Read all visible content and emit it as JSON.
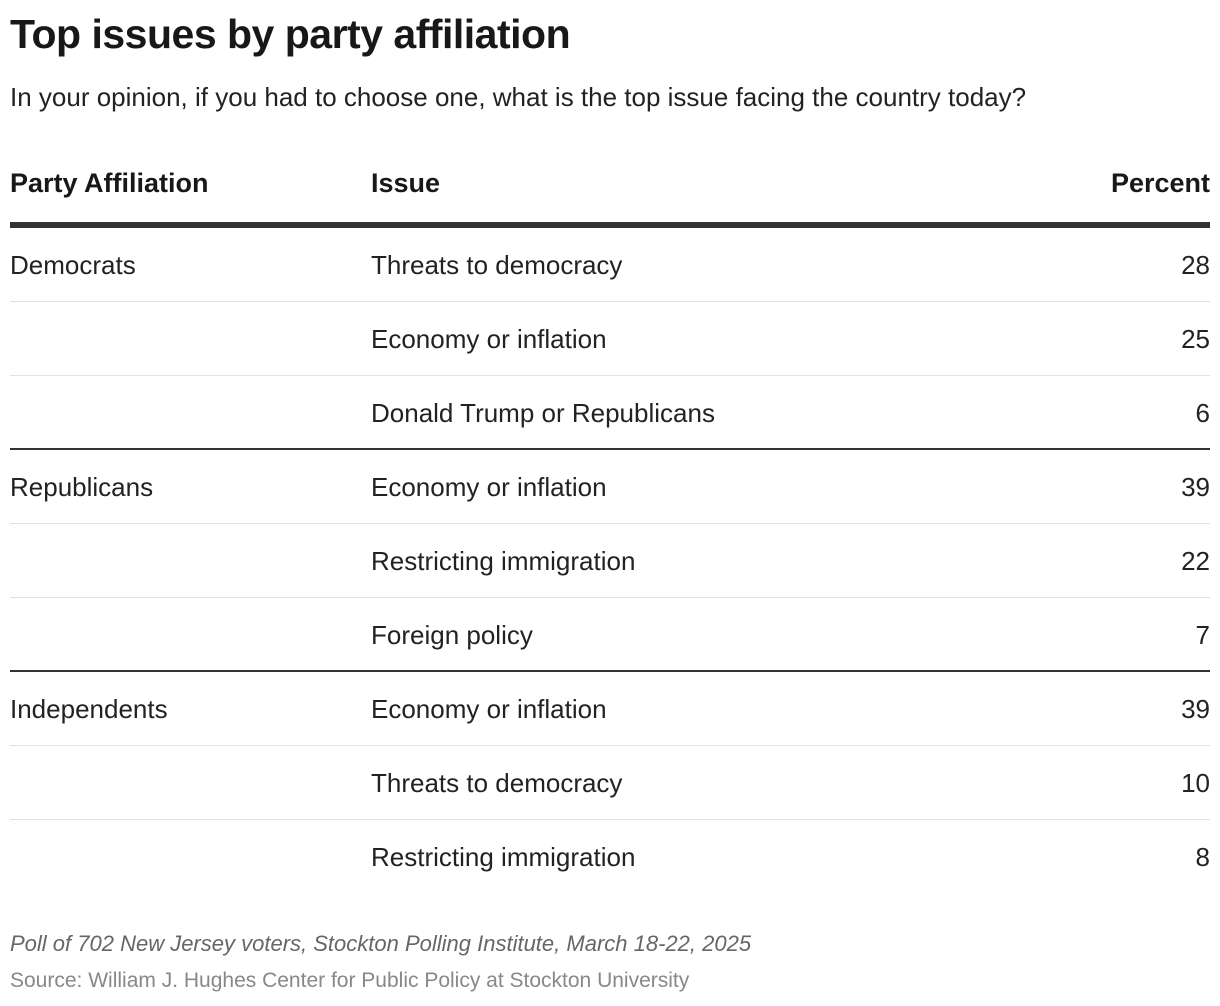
{
  "title": "Top issues by party affiliation",
  "subtitle": "In your opinion, if you had to choose one, what is the top issue facing the country today?",
  "chart_data": {
    "type": "table",
    "columns": [
      "Party Affiliation",
      "Issue",
      "Percent"
    ],
    "rows": [
      [
        "Democrats",
        "Threats to democracy",
        "28"
      ],
      [
        "",
        "Economy or inflation",
        "25"
      ],
      [
        "",
        "Donald Trump or Republicans",
        "6"
      ],
      [
        "Republicans",
        "Economy or inflation",
        "39"
      ],
      [
        "",
        "Restricting immigration",
        "22"
      ],
      [
        "",
        "Foreign policy",
        "7"
      ],
      [
        "Independents",
        "Economy or inflation",
        "39"
      ],
      [
        "",
        "Threats to democracy",
        "10"
      ],
      [
        "",
        "Restricting immigration",
        "8"
      ]
    ]
  },
  "footer": {
    "note": "Poll of 702 New Jersey voters, Stockton Polling Institute, March 18-22, 2025",
    "source": "Source: William J. Hughes Center for Public Policy at Stockton University"
  }
}
